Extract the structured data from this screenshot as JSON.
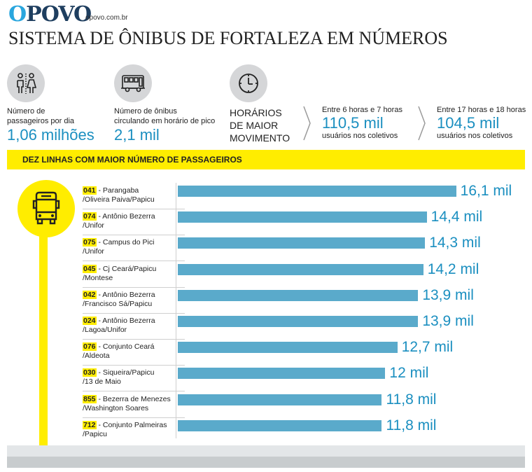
{
  "header": {
    "logo_text": "OPOVO",
    "logo_first": "O",
    "logo_rest": "POVO",
    "site": "opovo.com.br",
    "title": "SISTEMA DE ÔNIBUS DE FORTALEZA EM NÚMEROS"
  },
  "stats": {
    "passengers": {
      "icon": "people-icon",
      "label_line1": "Número de",
      "label_line2": "passageiros por dia",
      "value": "1,06 milhões"
    },
    "buses": {
      "icon": "bus-front-icon",
      "label_line1": "Número de ônibus",
      "label_line2": "circulando em horário de pico",
      "value": "2,1 mil"
    },
    "peak": {
      "icon": "clock-icon",
      "heading_line1": "HORÁRIOS",
      "heading_line2": "DE MAIOR",
      "heading_line3": "MOVIMENTO",
      "morning": {
        "label": "Entre 6 horas e 7 horas",
        "value": "110,5 mil",
        "sub": "usuários nos coletivos"
      },
      "evening": {
        "label": "Entre 17 horas e 18 horas",
        "value": "104,5 mil",
        "sub": "usuários nos coletivos"
      }
    }
  },
  "colors": {
    "accent_yellow": "#ffed00",
    "bar_blue": "#5aaacb",
    "value_blue": "#1b8fc0",
    "logo_blue": "#29a6de",
    "logo_navy": "#1e3e5f"
  },
  "chart_data": {
    "type": "bar",
    "orientation": "horizontal",
    "title": "DEZ LINHAS COM MAIOR NÚMERO DE PASSAGEIROS",
    "unit": "mil passageiros",
    "xlim": [
      0,
      16.1
    ],
    "grid": false,
    "categories": [
      {
        "code": "041",
        "line1": "Parangaba",
        "line2": "/Oliveira Paiva/Papicu"
      },
      {
        "code": "074",
        "line1": "Antônio Bezerra",
        "line2": "/Unifor"
      },
      {
        "code": "075",
        "line1": "Campus do Pici",
        "line2": "/Unifor"
      },
      {
        "code": "045",
        "line1": "Cj Ceará/Papicu",
        "line2": "/Montese"
      },
      {
        "code": "042",
        "line1": "Antônio Bezerra",
        "line2": "/Francisco Sá/Papicu"
      },
      {
        "code": "024",
        "line1": "Antônio Bezerra",
        "line2": "/Lagoa/Unifor"
      },
      {
        "code": "076",
        "line1": "Conjunto Ceará",
        "line2": "/Aldeota"
      },
      {
        "code": "030",
        "line1": "Siqueira/Papicu",
        "line2": "/13 de Maio"
      },
      {
        "code": "855",
        "line1": "Bezerra de Menezes",
        "line2": "/Washington Soares"
      },
      {
        "code": "712",
        "line1": "Conjunto Palmeiras",
        "line2": "/Papicu"
      }
    ],
    "values": [
      16.1,
      14.4,
      14.3,
      14.2,
      13.9,
      13.9,
      12.7,
      12,
      11.8,
      11.8
    ],
    "labels": [
      "16,1 mil",
      "14,4 mil",
      "14,3 mil",
      "14,2 mil",
      "13,9 mil",
      "13,9 mil",
      "12,7 mil",
      "12 mil",
      "11,8 mil",
      "11,8 mil"
    ]
  }
}
